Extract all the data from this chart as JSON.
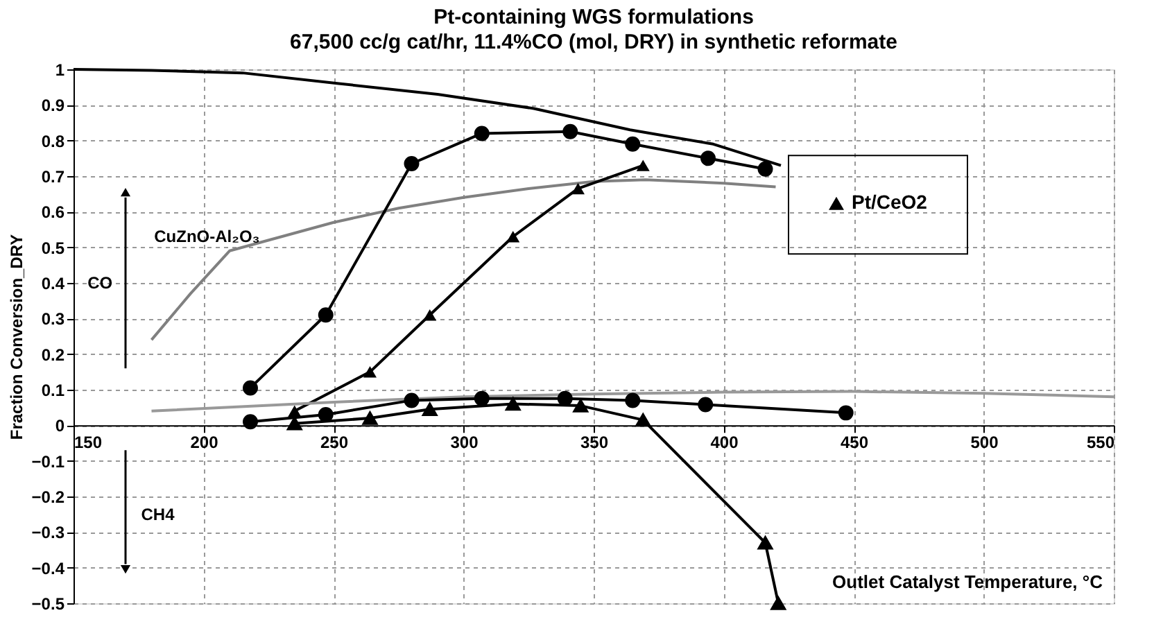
{
  "chart_data": {
    "type": "line",
    "title": "Pt-containing WGS formulations",
    "subtitle": "67,500 cc/g cat/hr, 11.4%CO (mol, DRY) in synthetic reformate",
    "xlabel": "Outlet Catalyst Temperature, °C",
    "ylabel": "Fraction Conversion_DRY",
    "xlim": [
      150,
      550
    ],
    "xticks": [
      150,
      200,
      250,
      300,
      350,
      400,
      450,
      500,
      550
    ],
    "ylim": [
      -0.5,
      1
    ],
    "yticks": [
      -0.5,
      -0.4,
      -0.3,
      -0.2,
      -0.1,
      0,
      0.1,
      0.2,
      0.3,
      0.4,
      0.5,
      0.6,
      0.7,
      0.8,
      0.9,
      1
    ],
    "grid": true,
    "legend": "right",
    "annotations": [
      "CuZnO-Al₂O₃",
      "CO",
      "CH4"
    ],
    "series": [
      {
        "color": "#000000",
        "marker": "none",
        "x": [
          150,
          180,
          215,
          252,
          290,
          327,
          364,
          396,
          422
        ],
        "values": [
          1.0,
          0.997,
          0.99,
          0.96,
          0.93,
          0.89,
          0.83,
          0.79,
          0.73
        ]
      },
      {
        "color": "#808080",
        "marker": "none",
        "x": [
          180,
          195,
          210,
          230,
          250,
          275,
          300,
          325,
          350,
          370,
          400,
          420
        ],
        "values": [
          0.24,
          0.37,
          0.49,
          0.53,
          0.57,
          0.61,
          0.64,
          0.665,
          0.685,
          0.69,
          0.68,
          0.67
        ]
      },
      {
        "name": "Pt/CeO2",
        "color": "#000000",
        "marker": "triangle",
        "x": [
          235,
          264,
          287,
          319,
          344,
          369
        ],
        "values": [
          0.04,
          0.15,
          0.31,
          0.53,
          0.665,
          0.73
        ]
      },
      {
        "color": "#000000",
        "marker": "circle",
        "x": [
          218,
          247,
          280,
          307,
          341,
          365,
          394,
          416
        ],
        "values": [
          0.105,
          0.31,
          0.735,
          0.82,
          0.825,
          0.79,
          0.75,
          0.72
        ]
      },
      {
        "color": "#999999",
        "marker": "none",
        "x": [
          180,
          250,
          300,
          350,
          400,
          450,
          500,
          550
        ],
        "values": [
          0.04,
          0.065,
          0.08,
          0.088,
          0.093,
          0.095,
          0.09,
          0.08
        ]
      },
      {
        "color": "#000000",
        "marker": "circle",
        "x": [
          218,
          247,
          280,
          307,
          339,
          365,
          393,
          447
        ],
        "values": [
          0.01,
          0.03,
          0.07,
          0.075,
          0.075,
          0.07,
          0.058,
          0.035
        ]
      },
      {
        "color": "#000000",
        "marker": "triangle",
        "x": [
          235,
          264,
          287,
          319,
          345,
          369,
          416,
          421
        ],
        "values": [
          0.005,
          0.02,
          0.045,
          0.06,
          0.055,
          0.015,
          -0.33,
          -0.5
        ]
      }
    ]
  }
}
